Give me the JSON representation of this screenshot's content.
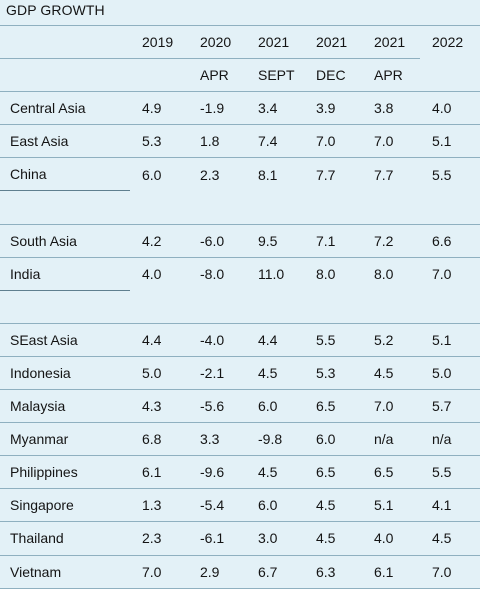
{
  "title": "GDP GROWTH",
  "chart_data": {
    "type": "table",
    "columns": [
      {
        "year": "2019",
        "sub": ""
      },
      {
        "year": "2020",
        "sub": "APR"
      },
      {
        "year": "2021",
        "sub": "SEPT"
      },
      {
        "year": "2021",
        "sub": "DEC"
      },
      {
        "year": "2021",
        "sub": "APR"
      },
      {
        "year": "2022",
        "sub": ""
      }
    ],
    "groups": [
      {
        "rows": [
          {
            "country": "Central Asia",
            "values": [
              "4.9",
              "-1.9",
              "3.4",
              "3.9",
              "3.8",
              "4.0"
            ]
          },
          {
            "country": "East Asia",
            "values": [
              "5.3",
              "1.8",
              "7.4",
              "7.0",
              "7.0",
              "5.1"
            ]
          },
          {
            "country": "China",
            "values": [
              "6.0",
              "2.3",
              "8.1",
              "7.7",
              "7.7",
              "5.5"
            ]
          }
        ]
      },
      {
        "rows": [
          {
            "country": "South Asia",
            "values": [
              "4.2",
              "-6.0",
              "9.5",
              "7.1",
              "7.2",
              "6.6"
            ]
          },
          {
            "country": "India",
            "values": [
              "4.0",
              "-8.0",
              "11.0",
              "8.0",
              "8.0",
              "7.0"
            ]
          }
        ]
      },
      {
        "rows": [
          {
            "country": "SEast Asia",
            "values": [
              "4.4",
              "-4.0",
              "4.4",
              "5.5",
              "5.2",
              "5.1"
            ]
          },
          {
            "country": "Indonesia",
            "values": [
              "5.0",
              "-2.1",
              "4.5",
              "5.3",
              "4.5",
              "5.0"
            ]
          },
          {
            "country": "Malaysia",
            "values": [
              "4.3",
              "-5.6",
              "6.0",
              "6.5",
              "7.0",
              "5.7"
            ]
          },
          {
            "country": "Myanmar",
            "values": [
              "6.8",
              "3.3",
              "-9.8",
              "6.0",
              "n/a",
              "n/a"
            ]
          },
          {
            "country": "Philippines",
            "values": [
              "6.1",
              "-9.6",
              "4.5",
              "6.5",
              "6.5",
              "5.5"
            ]
          },
          {
            "country": "Singapore",
            "values": [
              "1.3",
              "-5.4",
              "6.0",
              "4.5",
              "5.1",
              "4.1"
            ]
          },
          {
            "country": "Thailand",
            "values": [
              "2.3",
              "-6.1",
              "3.0",
              "4.5",
              "4.0",
              "4.5"
            ]
          },
          {
            "country": "Vietnam",
            "values": [
              "7.0",
              "2.9",
              "6.7",
              "6.3",
              "6.1",
              "7.0"
            ]
          }
        ]
      }
    ]
  }
}
